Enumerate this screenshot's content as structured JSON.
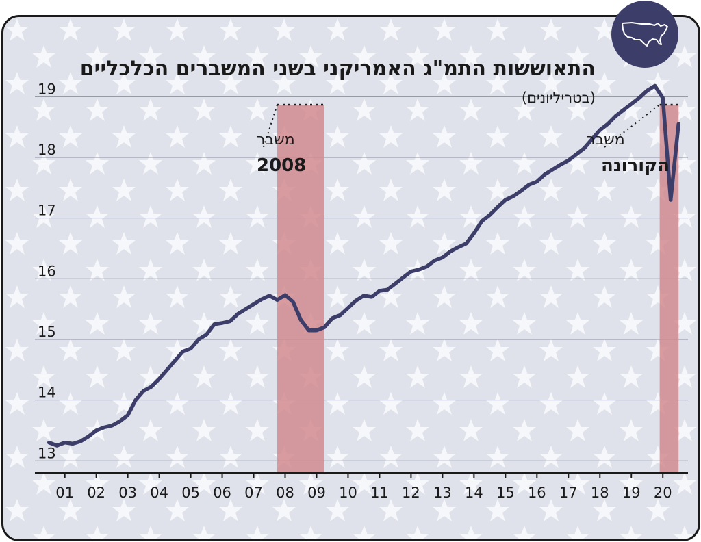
{
  "title": "התאוששות התמ\"ג האמריקני בשני המשברים הכלכליים",
  "subtitle": "(בטריליונים)",
  "icon": "usa-map-icon",
  "colors": {
    "line": "#3d3d6a",
    "crisis_band": "#d18b8f",
    "background": "#dfe2ea",
    "badge": "#3d3d6a"
  },
  "annotations": [
    {
      "line1": "משבר",
      "line2": "2008"
    },
    {
      "line1": "משבר",
      "line2": "הקורונה"
    }
  ],
  "chart_data": {
    "type": "line",
    "ylim": [
      12.8,
      19.5
    ],
    "yticks": [
      13,
      14,
      15,
      16,
      17,
      18,
      19
    ],
    "xlim": [
      2000.05,
      2020.8
    ],
    "xtick_labels": [
      "01",
      "02",
      "03",
      "04",
      "05",
      "06",
      "07",
      "08",
      "09",
      "10",
      "11",
      "12",
      "13",
      "14",
      "15",
      "16",
      "17",
      "18",
      "19",
      "20"
    ],
    "bands": [
      [
        2007.75,
        2009.25
      ],
      [
        2019.9,
        2020.5
      ]
    ],
    "grid": true,
    "x": [
      2000.5,
      2000.75,
      2001,
      2001.25,
      2001.5,
      2001.75,
      2002,
      2002.25,
      2002.5,
      2002.75,
      2003,
      2003.25,
      2003.5,
      2003.75,
      2004,
      2004.25,
      2004.5,
      2004.75,
      2005,
      2005.25,
      2005.5,
      2005.75,
      2006,
      2006.25,
      2006.5,
      2006.75,
      2007,
      2007.25,
      2007.5,
      2007.75,
      2008,
      2008.25,
      2008.5,
      2008.75,
      2009,
      2009.25,
      2009.5,
      2009.75,
      2010,
      2010.25,
      2010.5,
      2010.75,
      2011,
      2011.25,
      2011.5,
      2011.75,
      2012,
      2012.25,
      2012.5,
      2012.75,
      2013,
      2013.25,
      2013.5,
      2013.75,
      2014,
      2014.25,
      2014.5,
      2014.75,
      2015,
      2015.25,
      2015.5,
      2015.75,
      2016,
      2016.25,
      2016.5,
      2016.75,
      2017,
      2017.25,
      2017.5,
      2017.75,
      2018,
      2018.25,
      2018.5,
      2018.75,
      2019,
      2019.25,
      2019.5,
      2019.75,
      2020,
      2020.25,
      2020.5
    ],
    "y": [
      13.3,
      13.25,
      13.3,
      13.28,
      13.32,
      13.4,
      13.5,
      13.55,
      13.58,
      13.65,
      13.75,
      14.0,
      14.15,
      14.22,
      14.35,
      14.5,
      14.65,
      14.8,
      14.85,
      15.0,
      15.08,
      15.25,
      15.27,
      15.3,
      15.42,
      15.5,
      15.58,
      15.66,
      15.72,
      15.65,
      15.73,
      15.62,
      15.32,
      15.15,
      15.15,
      15.2,
      15.35,
      15.4,
      15.52,
      15.64,
      15.72,
      15.7,
      15.8,
      15.82,
      15.92,
      16.02,
      16.12,
      16.15,
      16.2,
      16.3,
      16.35,
      16.45,
      16.52,
      16.58,
      16.75,
      16.95,
      17.05,
      17.18,
      17.3,
      17.36,
      17.45,
      17.55,
      17.6,
      17.72,
      17.8,
      17.88,
      17.95,
      18.05,
      18.15,
      18.3,
      18.45,
      18.55,
      18.68,
      18.78,
      18.88,
      18.98,
      19.1,
      19.18,
      18.98,
      17.3,
      18.55
    ]
  }
}
